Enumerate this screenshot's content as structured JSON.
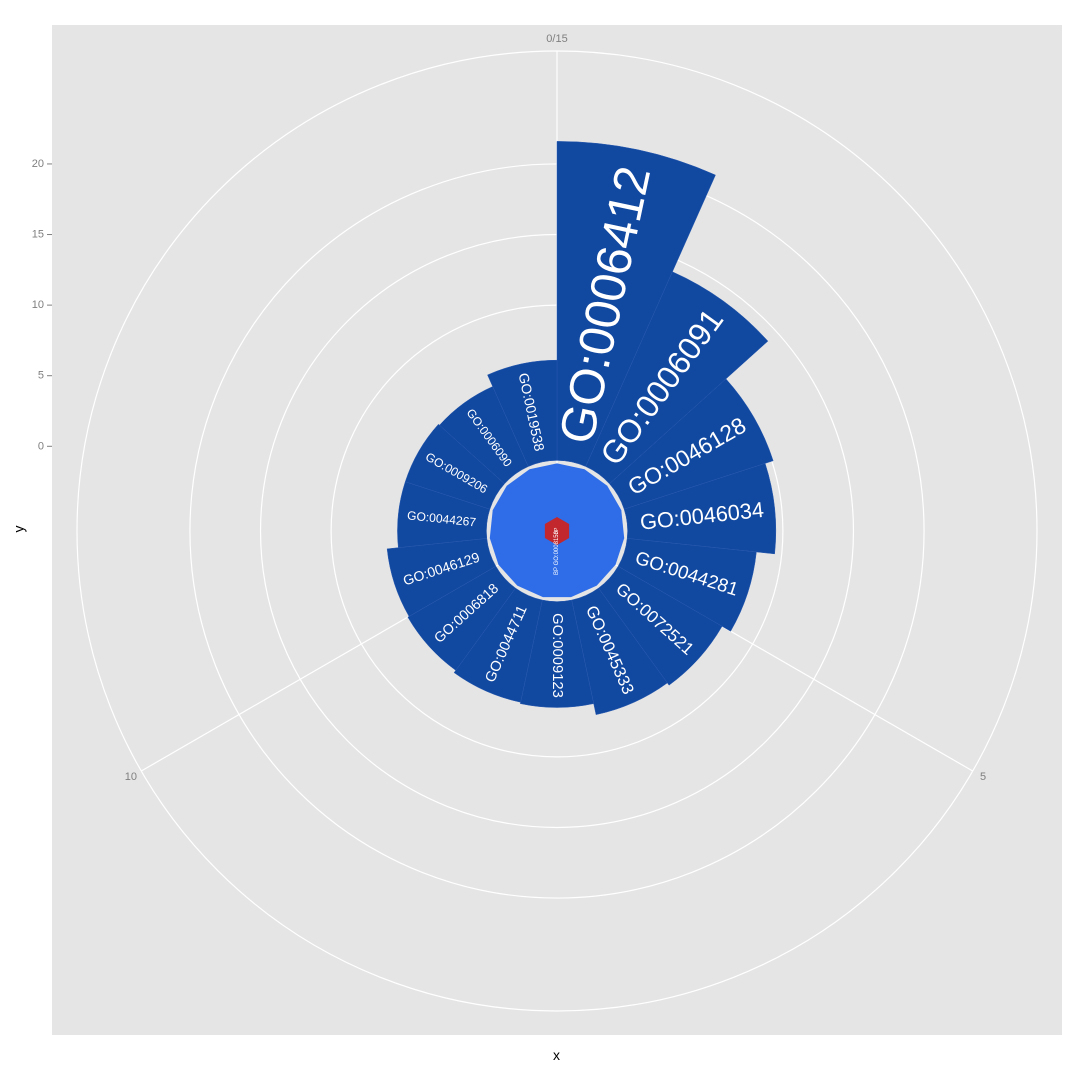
{
  "chart_data": {
    "type": "bar",
    "coord": "polar",
    "xlabel": "x",
    "ylabel": "y",
    "x_range": [
      0,
      15
    ],
    "y_range": [
      -6,
      28
    ],
    "x_ticks": [
      {
        "value": 0,
        "label": "0/15"
      },
      {
        "value": 5,
        "label": "5"
      },
      {
        "value": 10,
        "label": "10"
      }
    ],
    "y_ticks": [
      0,
      5,
      10,
      15,
      20
    ],
    "grid": true,
    "colors": {
      "panel": "#e5e5e5",
      "grid": "#ffffff",
      "bar": "#1148a0",
      "center_blue": "#2f6de8",
      "center_red": "#c1272d",
      "tick_text": "#7f7f7f",
      "label_text": "#ffffff"
    },
    "series": [
      {
        "values": [
          {
            "label": "GO:0006412",
            "y": 21.6
          },
          {
            "label": "GO:0006091",
            "y": 14.1
          },
          {
            "label": "GO:0046128",
            "y": 10.1
          },
          {
            "label": "GO:0046034",
            "y": 9.5
          },
          {
            "label": "GO:0044281",
            "y": 8.2
          },
          {
            "label": "GO:0072521",
            "y": 7.5
          },
          {
            "label": "GO:0045333",
            "y": 7.3
          },
          {
            "label": "GO:0009123",
            "y": 6.5
          },
          {
            "label": "GO:0044711",
            "y": 6.4
          },
          {
            "label": "GO:0006818",
            "y": 6.2
          },
          {
            "label": "GO:0046129",
            "y": 6.1
          },
          {
            "label": "GO:0044267",
            "y": 5.3
          },
          {
            "label": "GO:0009206",
            "y": 5.3
          },
          {
            "label": "GO:0006090",
            "y": 5.2
          },
          {
            "label": "GO:0019538",
            "y": 6.1
          }
        ]
      }
    ],
    "center": {
      "ring_label": "BP GO:0008150",
      "inner_label": "BP"
    }
  }
}
